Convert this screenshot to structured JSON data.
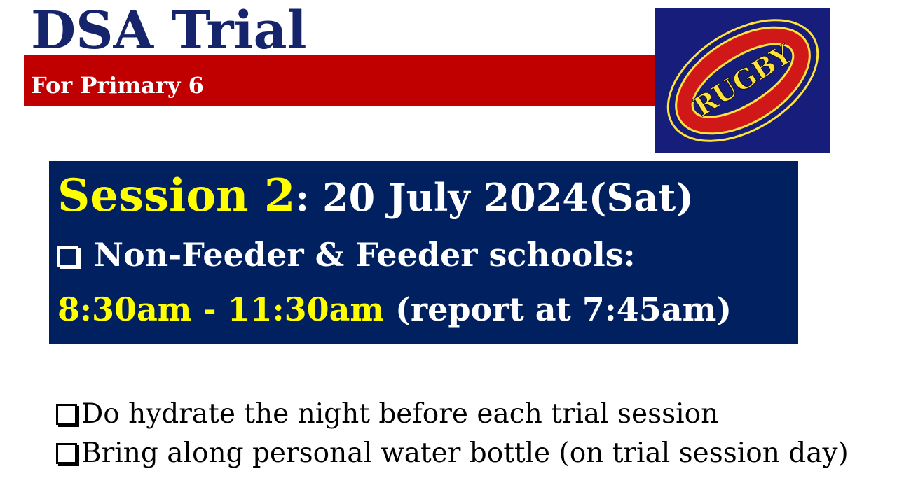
{
  "header": {
    "title": "DSA Trial",
    "subtitle": "For Primary 6"
  },
  "logo": {
    "text": "RUGBY",
    "icon": "rugby-ball-icon",
    "colors": {
      "background": "#161d7a",
      "ring": "#ffe23c",
      "band": "#d11818",
      "center": "#161d7a"
    }
  },
  "session": {
    "label": "Session 2",
    "date": ": 20 July 2024(Sat)",
    "schools": "Non-Feeder & Feeder schools:",
    "time": "8:30am - 11:30am",
    "report": " (report at 7:45am)"
  },
  "tips": [
    "Do hydrate the night before each trial session",
    "Bring along personal water bottle (on trial session day)"
  ],
  "colors": {
    "title": "#16246b",
    "band": "#c00000",
    "panel": "#002060",
    "highlight": "#ffff00"
  }
}
